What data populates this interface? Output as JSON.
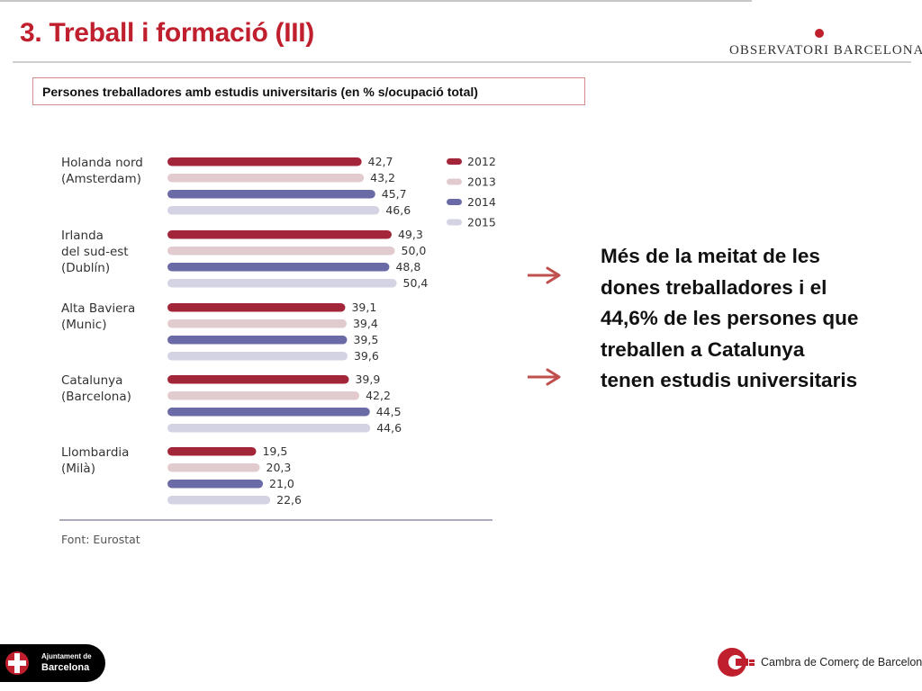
{
  "header": {
    "title": "3. Treball i formació (III)",
    "logo_text": "OBSERVATORI BARCELONA",
    "accent_color": "#c0202e"
  },
  "subtitle": "Persones treballadores amb estudis universitaris (en % s/ocupació total)",
  "chart_data": {
    "type": "bar",
    "orientation": "horizontal",
    "categories": [
      [
        "Holanda nord",
        "(Amsterdam)"
      ],
      [
        "Irlanda",
        "del sud-est",
        "(Dublín)"
      ],
      [
        "Alta Baviera",
        "(Munic)"
      ],
      [
        "Catalunya",
        "(Barcelona)"
      ],
      [
        "Llombardia",
        "(Milà)"
      ]
    ],
    "series": [
      {
        "name": "2012",
        "color": "#a3253a",
        "values": [
          42.7,
          49.3,
          39.1,
          39.9,
          19.5
        ]
      },
      {
        "name": "2013",
        "color": "#e2cbcf",
        "values": [
          43.2,
          50.0,
          39.4,
          42.2,
          20.3
        ]
      },
      {
        "name": "2014",
        "color": "#6a6aa6",
        "values": [
          45.7,
          48.8,
          39.5,
          44.5,
          21.0
        ]
      },
      {
        "name": "2015",
        "color": "#d3d3e4",
        "values": [
          46.6,
          50.4,
          39.6,
          44.6,
          22.6
        ]
      }
    ],
    "value_labels": [
      [
        "42,7",
        "43,2",
        "45,7",
        "46,6"
      ],
      [
        "49,3",
        "50,0",
        "48,8",
        "50,4"
      ],
      [
        "39,1",
        "39,4",
        "39,5",
        "39,6"
      ],
      [
        "39,9",
        "42,2",
        "44,5",
        "44,6"
      ],
      [
        "19,5",
        "20,3",
        "21,0",
        "22,6"
      ]
    ],
    "legend_position": "top-right",
    "grid": false,
    "source": "Font:  Eurostat"
  },
  "message": {
    "lines": [
      "Més de la meitat de les",
      "dones treballadores i el",
      "44,6% de les persones que",
      "treballen a Catalunya",
      "tenen estudis universitaris"
    ],
    "arrow_color": "#c0504d"
  },
  "footer": {
    "ajuntament_line1": "Ajuntament de",
    "ajuntament_line2": "Barcelona",
    "cambra": "Cambra de Comerç de Barcelona"
  }
}
